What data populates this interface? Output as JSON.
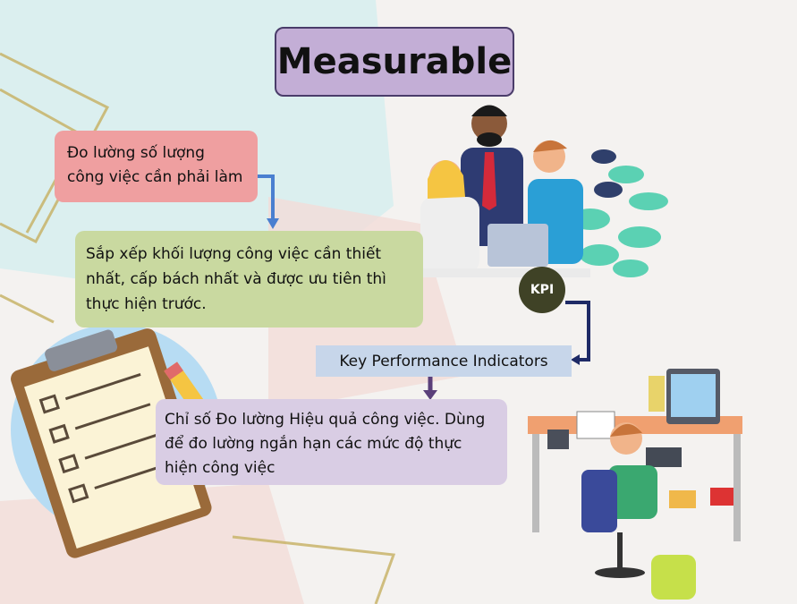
{
  "title": "Measurable",
  "box1": {
    "lines": [
      "Đo lường số lượng",
      "công việc cần phải làm"
    ]
  },
  "box2": {
    "lines": [
      "Sắp xếp khối lượng công việc cần thiết",
      "nhất, cấp bách nhất và được ưu tiên thì",
      "thực hiện trước."
    ]
  },
  "kpi_badge": "KPI",
  "kpi_label": "Key Performance Indicators",
  "box3": {
    "lines": [
      "Chỉ số Đo lường Hiệu quả công việc. Dùng",
      "để đo lường ngắn hạn các mức độ thực",
      "hiện công việc"
    ]
  },
  "colors": {
    "title_bg": "#c3aed6",
    "box1_bg": "#ef9fa0",
    "box2_bg": "#c9d9a0",
    "kpi_label_bg": "#c7d6ea",
    "box3_bg": "#d9cde4",
    "arrow": "#4a7fd0",
    "badge": "#3f4226"
  }
}
